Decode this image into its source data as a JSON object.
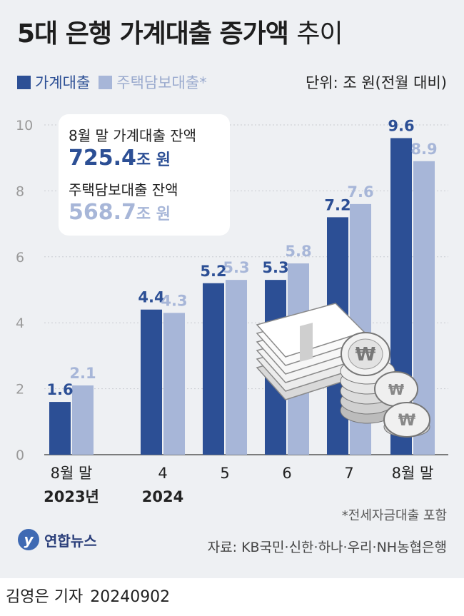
{
  "title": {
    "bold": "5대 은행 가계대출 증가액",
    "light": "추이"
  },
  "unit_label": "단위: 조 원(전월 대비)",
  "infobox": {
    "line1_label": "8월 말 가계대출 잔액",
    "line1_value": "725.4",
    "line1_unit": "조 원",
    "line2_label": "주택담보대출 잔액",
    "line2_value": "568.7",
    "line2_unit": "조 원"
  },
  "note": "*전세자금대출 포함",
  "logo_text": "연합뉴스",
  "source": "자료: KB국민·신한·하나·우리·NH농협은행",
  "byline": {
    "author": "김영은 기자",
    "date": "20240902"
  },
  "colors": {
    "series1": "#2c4f95",
    "series2": "#a7b6d8",
    "grid": "#c9ccd1"
  },
  "chart_data": {
    "type": "bar",
    "categories": [
      "8월 말",
      "4",
      "5",
      "6",
      "7",
      "8월 말"
    ],
    "category_sublabels": [
      "2023년",
      "2024",
      "",
      "",
      "",
      ""
    ],
    "series": [
      {
        "name": "가계대출",
        "values": [
          1.6,
          4.4,
          5.2,
          5.3,
          7.2,
          9.6
        ]
      },
      {
        "name": "주택담보대출*",
        "values": [
          2.1,
          4.3,
          5.3,
          5.8,
          7.6,
          8.9
        ]
      }
    ],
    "ylim": [
      0,
      10
    ],
    "yticks": [
      0,
      2,
      4,
      6,
      8,
      10
    ],
    "grid": true,
    "legend_position": "top-left"
  }
}
